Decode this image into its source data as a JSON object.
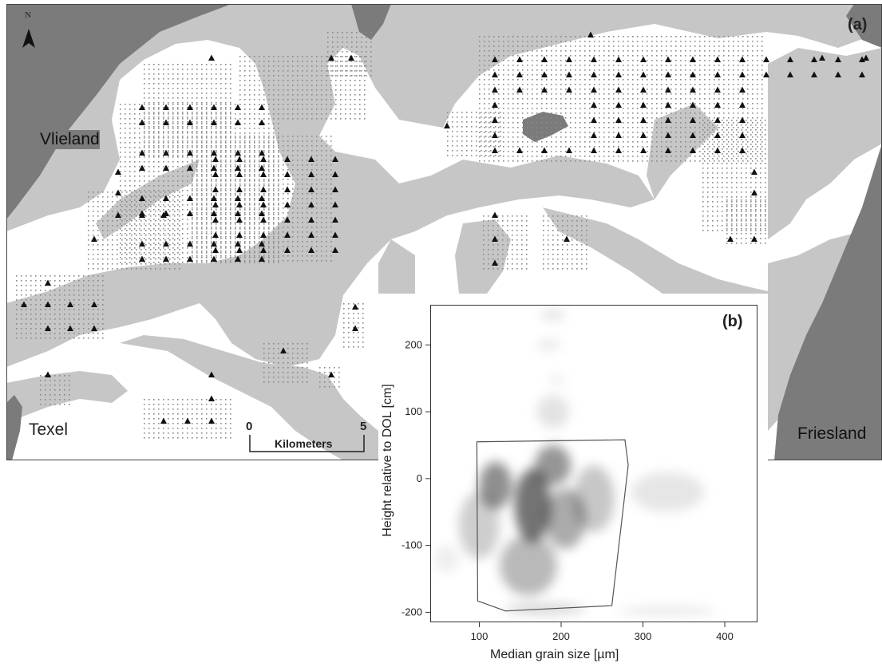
{
  "map": {
    "panel_label": "(a)",
    "north_label": "N",
    "places": {
      "vlieland": "Vlieland",
      "texel": "Texel",
      "friesland": "Friesland"
    },
    "scale_bar": {
      "start": "0",
      "end": "5",
      "unit": "Kilometers"
    },
    "colors": {
      "island_land": "#7b7b7b",
      "channel": "#c6c6c6",
      "tidal_flat": "#ffffff",
      "frame": "#444444",
      "sample_dot": "#8a8a8a",
      "triangle": "#111111"
    }
  },
  "inset": {
    "panel_label": "(b)",
    "xlabel": "Median grain size [µm]",
    "ylabel": "Height relative to DOL [cm]"
  },
  "chart_data": {
    "type": "heatmap",
    "title": "",
    "xlabel": "Median grain size [µm]",
    "ylabel": "Height relative to DOL [cm]",
    "xlim": [
      40,
      440
    ],
    "ylim": [
      -215,
      260
    ],
    "xticks": [
      100,
      200,
      300,
      400
    ],
    "yticks": [
      -200,
      -100,
      0,
      100,
      200
    ],
    "grid": false,
    "density_clusters": [
      {
        "x": 165,
        "y": -40,
        "sx": 22,
        "sy": 55,
        "weight": 1.0
      },
      {
        "x": 120,
        "y": -10,
        "sx": 20,
        "sy": 35,
        "weight": 0.8
      },
      {
        "x": 190,
        "y": 20,
        "sx": 22,
        "sy": 30,
        "weight": 0.75
      },
      {
        "x": 205,
        "y": -60,
        "sx": 25,
        "sy": 45,
        "weight": 0.6
      },
      {
        "x": 160,
        "y": -130,
        "sx": 35,
        "sy": 45,
        "weight": 0.5
      },
      {
        "x": 240,
        "y": -30,
        "sx": 25,
        "sy": 50,
        "weight": 0.4
      },
      {
        "x": 100,
        "y": -70,
        "sx": 25,
        "sy": 50,
        "weight": 0.35
      },
      {
        "x": 330,
        "y": -20,
        "sx": 45,
        "sy": 30,
        "weight": 0.18
      },
      {
        "x": 190,
        "y": 100,
        "sx": 20,
        "sy": 25,
        "weight": 0.2
      },
      {
        "x": 180,
        "y": -195,
        "sx": 50,
        "sy": 8,
        "weight": 0.3
      },
      {
        "x": 330,
        "y": -198,
        "sx": 60,
        "sy": 6,
        "weight": 0.18
      },
      {
        "x": 190,
        "y": 245,
        "sx": 15,
        "sy": 8,
        "weight": 0.2
      },
      {
        "x": 185,
        "y": 200,
        "sx": 15,
        "sy": 8,
        "weight": 0.15
      },
      {
        "x": 195,
        "y": 148,
        "sx": 10,
        "sy": 8,
        "weight": 0.12
      },
      {
        "x": 60,
        "y": -120,
        "sx": 15,
        "sy": 20,
        "weight": 0.12
      }
    ],
    "hull_polygon": [
      {
        "x": 97,
        "y": 55
      },
      {
        "x": 278,
        "y": 58
      },
      {
        "x": 282,
        "y": 20
      },
      {
        "x": 262,
        "y": -190
      },
      {
        "x": 132,
        "y": -198
      },
      {
        "x": 98,
        "y": -183
      }
    ]
  }
}
